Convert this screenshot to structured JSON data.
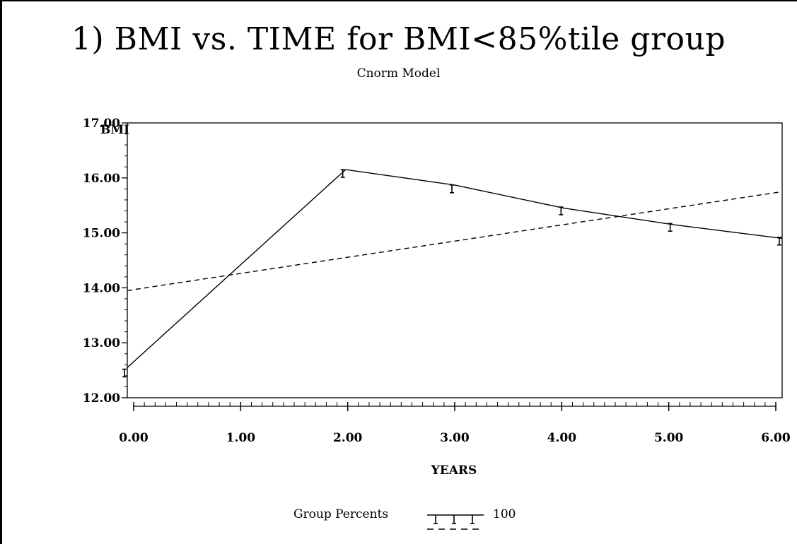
{
  "title": "1) BMI vs. TIME for BMI<85%tile group",
  "subtitle": "Cnorm Model",
  "chart_data": {
    "type": "line",
    "xlabel": "YEARS",
    "ylabel": "BMI",
    "xlim": [
      0,
      6
    ],
    "ylim": [
      12,
      17
    ],
    "x_ticks": [
      "0.00",
      "1.00",
      "2.00",
      "3.00",
      "4.00",
      "5.00",
      "6.00"
    ],
    "y_ticks": [
      "12.00",
      "13.00",
      "14.00",
      "15.00",
      "16.00",
      "17.00"
    ],
    "x_minor_per_major": 10,
    "y_minor_per_major": 5,
    "grid": false,
    "legend_position": "bottom",
    "series": [
      {
        "style": "solid",
        "x": [
          0,
          2,
          3,
          4,
          5,
          6
        ],
        "y": [
          12.55,
          16.15,
          15.87,
          15.45,
          15.15,
          14.9
        ]
      },
      {
        "style": "dashed",
        "x": [
          0,
          1,
          2,
          3,
          4,
          5,
          6
        ],
        "y": [
          13.95,
          14.25,
          14.55,
          14.85,
          15.15,
          15.45,
          15.75
        ]
      }
    ],
    "observed_means": {
      "x": [
        0,
        2,
        3,
        4,
        5,
        6
      ],
      "y": [
        12.45,
        16.08,
        15.8,
        15.4,
        15.1,
        14.85
      ],
      "err": [
        0.07,
        0.07,
        0.07,
        0.07,
        0.07,
        0.07
      ]
    }
  },
  "legend": {
    "label": "Group Percents",
    "entries": [
      {
        "symbol": "I I I",
        "style": "solid",
        "text": "100"
      },
      {
        "symbol": "",
        "style": "dashed",
        "text": ""
      }
    ]
  }
}
